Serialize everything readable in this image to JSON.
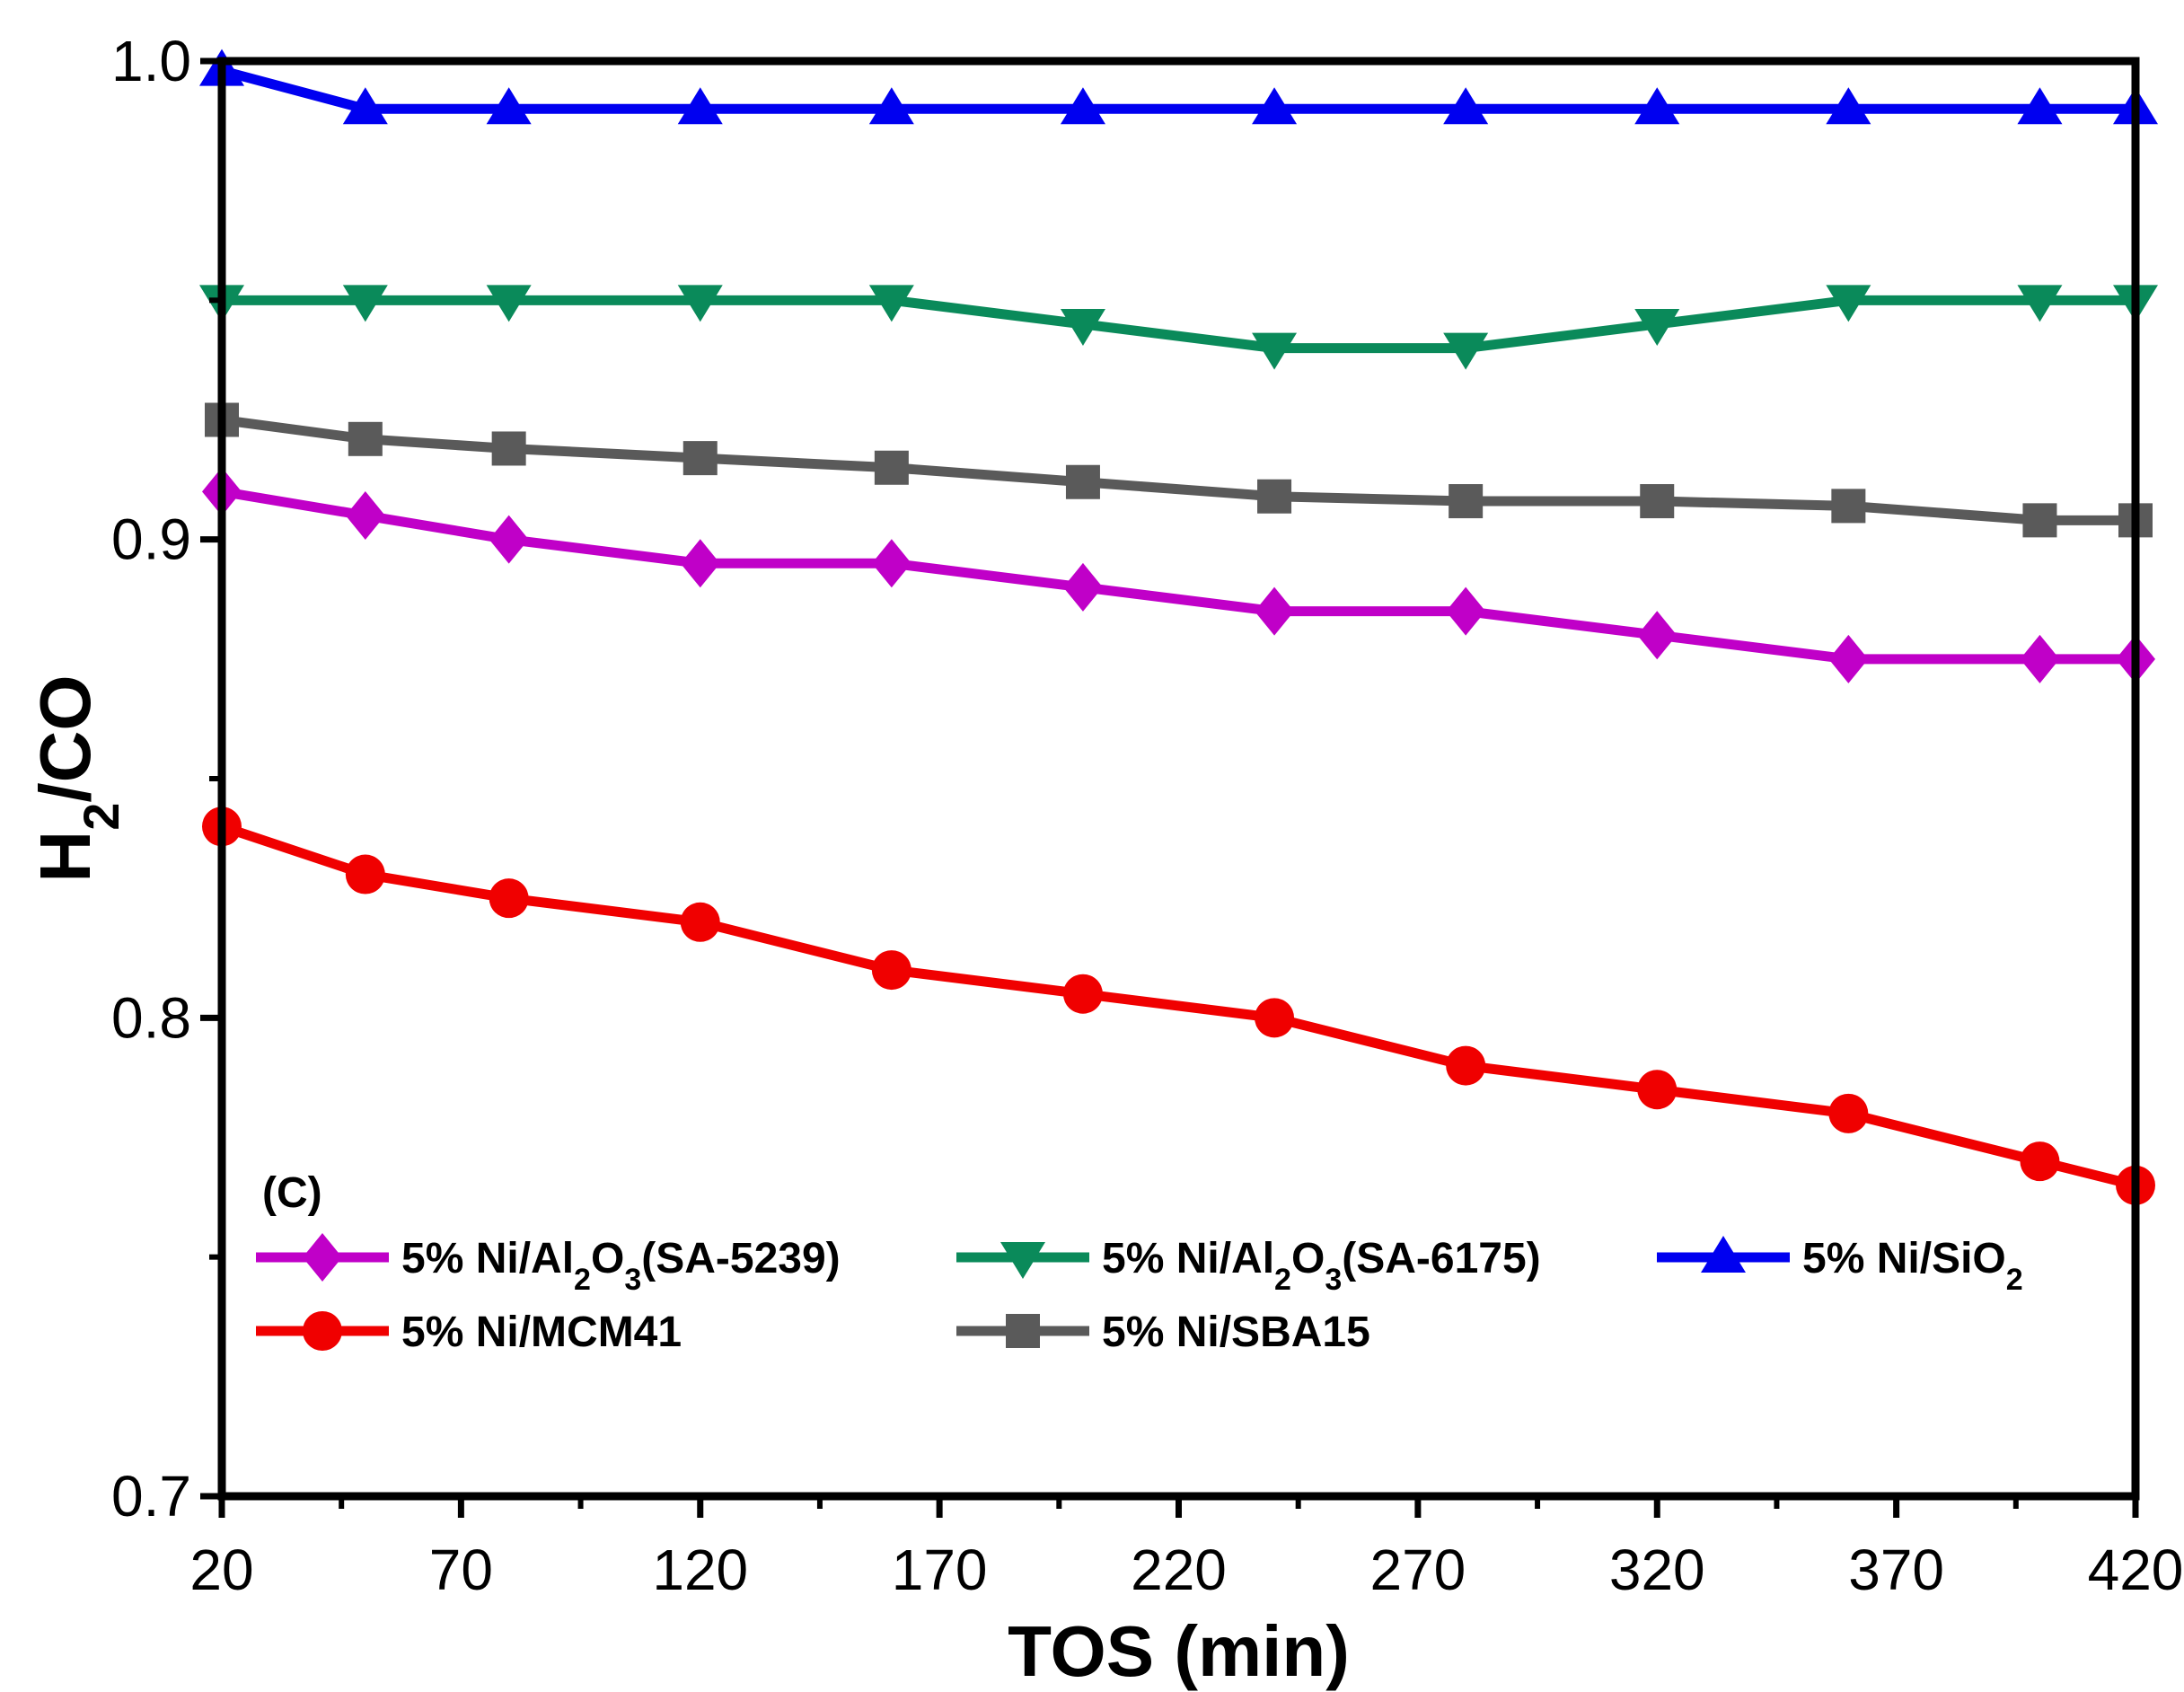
{
  "chart_data": {
    "type": "line",
    "panel_label": "(C)",
    "xlabel": "TOS (min)",
    "ylabel": "H2/CO",
    "ylabel_parts": {
      "main": "H",
      "sub": "2",
      "rest": "/CO"
    },
    "xlim": [
      20,
      420
    ],
    "ylim": [
      0.7,
      1.0
    ],
    "x_ticks": [
      20,
      70,
      120,
      170,
      220,
      270,
      320,
      370,
      420
    ],
    "y_ticks": [
      0.7,
      0.8,
      0.9,
      1.0
    ],
    "y_tick_labels": [
      "0.7",
      "0.8",
      "0.9",
      "1.0"
    ],
    "x": [
      20,
      50,
      80,
      120,
      160,
      200,
      240,
      280,
      320,
      360,
      400,
      420
    ],
    "series": [
      {
        "name": "5% Ni/Al2O3(SA-5239)",
        "label_parts": [
          {
            "t": "5% Ni/Al"
          },
          {
            "t": "2",
            "sub": true
          },
          {
            "t": "O"
          },
          {
            "t": "3",
            "sub": true
          },
          {
            "t": "(SA-5239)"
          }
        ],
        "color": "#c000c8",
        "marker": "diamond",
        "values": [
          0.91,
          0.905,
          0.9,
          0.895,
          0.895,
          0.89,
          0.885,
          0.885,
          0.88,
          0.875,
          0.875,
          0.875
        ]
      },
      {
        "name": "5% Ni/Al2O3(SA-6175)",
        "label_parts": [
          {
            "t": "5% Ni/Al"
          },
          {
            "t": "2",
            "sub": true
          },
          {
            "t": "O"
          },
          {
            "t": "3",
            "sub": true
          },
          {
            "t": "(SA-6175)"
          }
        ],
        "color": "#0a8a5a",
        "marker": "triangle-down",
        "values": [
          0.95,
          0.95,
          0.95,
          0.95,
          0.95,
          0.945,
          0.94,
          0.94,
          0.945,
          0.95,
          0.95,
          0.95
        ]
      },
      {
        "name": "5% Ni/SiO2",
        "label_parts": [
          {
            "t": "5% Ni/SiO"
          },
          {
            "t": "2",
            "sub": true
          }
        ],
        "color": "#0000f0",
        "marker": "triangle-up",
        "values": [
          0.998,
          0.99,
          0.99,
          0.99,
          0.99,
          0.99,
          0.99,
          0.99,
          0.99,
          0.99,
          0.99,
          0.99
        ]
      },
      {
        "name": "5% Ni/MCM41",
        "label_parts": [
          {
            "t": "5% Ni/MCM41"
          }
        ],
        "color": "#f00000",
        "marker": "circle",
        "values": [
          0.84,
          0.83,
          0.825,
          0.82,
          0.81,
          0.805,
          0.8,
          0.79,
          0.785,
          0.78,
          0.77,
          0.765
        ]
      },
      {
        "name": "5% Ni/SBA15",
        "label_parts": [
          {
            "t": "5% Ni/SBA15"
          }
        ],
        "color": "#5a5a5a",
        "marker": "square",
        "values": [
          0.925,
          0.921,
          0.919,
          0.917,
          0.915,
          0.912,
          0.909,
          0.908,
          0.908,
          0.907,
          0.904,
          0.904
        ]
      }
    ],
    "legend": {
      "placement": "bottom-left",
      "columns": 3
    },
    "grid": false
  }
}
